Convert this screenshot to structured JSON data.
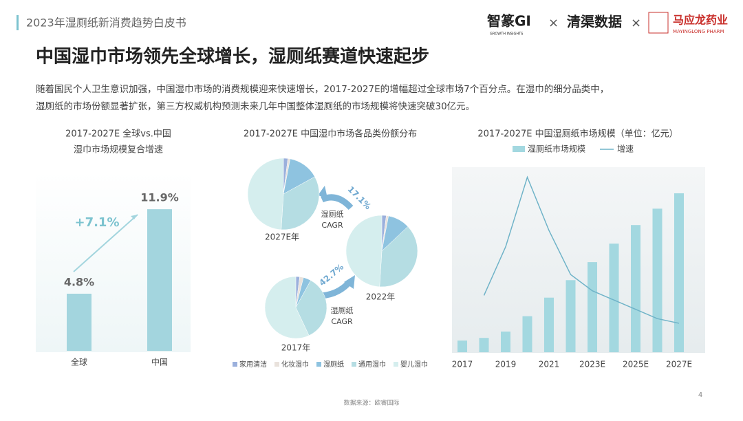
{
  "header": {
    "report": "2023年湿厕纸新消费趋势白皮书",
    "logos": [
      "智篆GI",
      "GROWTH INSIGHTS",
      "清渠数据",
      "马应龙药业",
      "MAYINGLONG PHARM"
    ]
  },
  "title": "中国湿巾市场领先全球增长，湿厕纸赛道快速起步",
  "body": [
    "随着国民个人卫生意识加强，中国湿巾市场的消费规模迎来快速增长，2017-2027E的增幅超过全球市场7个百分点。在湿巾的细分品类中，",
    "湿厕纸的市场份额显著扩张，第三方权威机构预测未来几年中国整体湿厕纸的市场规模将快速突破30亿元。"
  ],
  "chart_data": [
    {
      "type": "bar",
      "title": [
        "2017-2027E 全球vs.中国",
        "湿巾市场规模复合增速"
      ],
      "categories": [
        "全球",
        "中国"
      ],
      "values": [
        4.8,
        11.9
      ],
      "value_labels": [
        "4.8%",
        "11.9%"
      ],
      "color": "#a3d5de",
      "annotation": "+7.1%"
    },
    {
      "type": "pie",
      "title": "2017-2027E 中国湿巾市场各品类份额分布",
      "categories": [
        "家用清洁",
        "化妆湿巾",
        "湿厕纸",
        "通用湿巾",
        "婴儿湿巾"
      ],
      "colors": [
        "#9bb0dc",
        "#e9e2dc",
        "#8ec3e0",
        "#b5dde3",
        "#d5eeee"
      ],
      "series": [
        {
          "name": "2027E年",
          "values": [
            2,
            1,
            14,
            34,
            49
          ]
        },
        {
          "name": "2022年",
          "values": [
            2,
            1,
            10,
            38,
            49
          ]
        },
        {
          "name": "2017年",
          "values": [
            2,
            2,
            4,
            35,
            57
          ]
        }
      ],
      "annotations": [
        {
          "value": "17.1%",
          "label": [
            "湿厕纸",
            "CAGR"
          ]
        },
        {
          "value": "42.7%",
          "label": [
            "湿厕纸",
            "CAGR"
          ]
        }
      ]
    },
    {
      "type": "bar-line",
      "title": "2017-2027E 中国湿厕纸市场规模（单位：亿元）",
      "categories": [
        "2017",
        null,
        "2019",
        null,
        "2021",
        null,
        "2023E",
        null,
        "2025E",
        null,
        "2027E"
      ],
      "series": [
        {
          "name": "湿厕纸市场规模",
          "color": "#a3d8e0",
          "values": [
            2.2,
            2.7,
            3.9,
            6.8,
            10.3,
            13.6,
            17.0,
            20.5,
            24.0,
            27.1,
            30.0
          ]
        },
        {
          "name": "增速",
          "color": "#6fb3c8",
          "values": [
            null,
            23,
            44,
            74,
            51,
            32,
            25,
            21,
            17,
            13,
            11
          ]
        }
      ]
    }
  ],
  "footer": {
    "source": "数据来源：欧睿国际",
    "page": "4"
  }
}
